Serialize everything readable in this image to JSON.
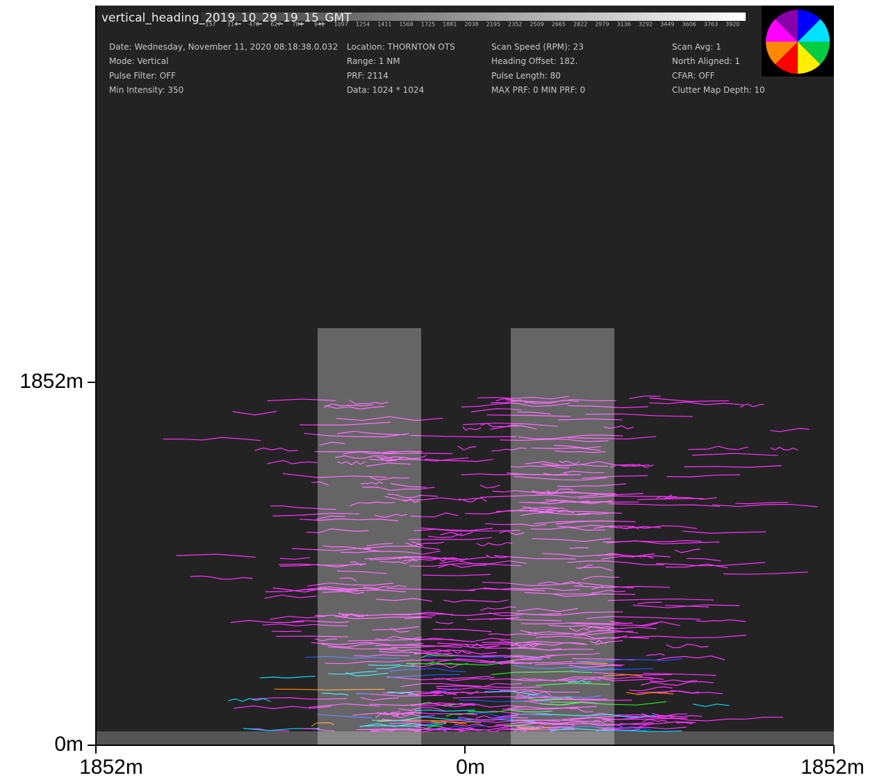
{
  "header": {
    "title": "vertical_heading_2019_10_29_19_15_GMT",
    "color_scale": [
      "157",
      "314",
      "470",
      "627",
      "784",
      "941",
      "1097",
      "1254",
      "1411",
      "1568",
      "1725",
      "1881",
      "2038",
      "2195",
      "2352",
      "2509",
      "2665",
      "2822",
      "2979",
      "3136",
      "3292",
      "3449",
      "3606",
      "3763",
      "3920"
    ]
  },
  "info": [
    [
      "Date: Wednesday, November 11, 2020 08:18:38.0.032",
      "Mode: Vertical",
      "Pulse Filter: OFF",
      "Min Intensity: 350"
    ],
    [
      "Location: THORNTON OTS",
      "Range: 1 NM",
      "PRF: 2114",
      "Data: 1024 * 1024"
    ],
    [
      "Scan Speed (RPM): 23",
      "Heading Offset: 182.",
      "Pulse Length: 80",
      "MAX PRF: 0 MIN PRF: 0"
    ],
    [
      "Scan Avg: 1",
      "North Aligned: 1",
      "CFAR: OFF",
      "Clutter Map Depth: 10"
    ]
  ],
  "axes": {
    "y_ticks": [
      "1852m",
      "0m"
    ],
    "x_ticks": [
      "1852m",
      "0m",
      "1852m"
    ]
  }
}
